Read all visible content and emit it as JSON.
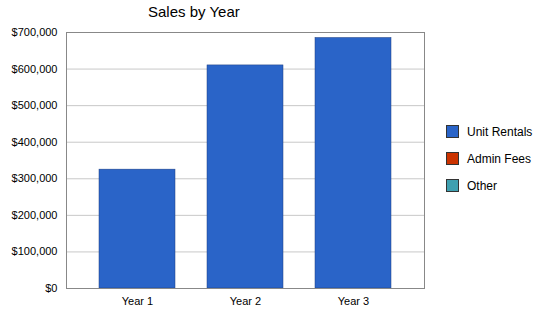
{
  "chart_data": {
    "type": "bar",
    "title": "Sales by Year",
    "categories": [
      "Year 1",
      "Year 2",
      "Year 3"
    ],
    "series": [
      {
        "name": "Unit Rentals",
        "color": "#2a64c8",
        "values": [
          325000,
          610000,
          685000
        ]
      },
      {
        "name": "Admin Fees",
        "color": "#cc3300",
        "values": [
          0,
          0,
          0
        ]
      },
      {
        "name": "Other",
        "color": "#3fa0b0",
        "values": [
          0,
          0,
          0
        ]
      }
    ],
    "stacked": true,
    "ylim": [
      0,
      700000
    ],
    "yticks": [
      {
        "value": 0,
        "label": "$0"
      },
      {
        "value": 100000,
        "label": "$100,000"
      },
      {
        "value": 200000,
        "label": "$200,000"
      },
      {
        "value": 300000,
        "label": "$300,000"
      },
      {
        "value": 400000,
        "label": "$400,000"
      },
      {
        "value": 500000,
        "label": "$500,000"
      },
      {
        "value": 600000,
        "label": "$600,000"
      },
      {
        "value": 700000,
        "label": "$700,000"
      }
    ],
    "grid": true,
    "legend": "right"
  }
}
